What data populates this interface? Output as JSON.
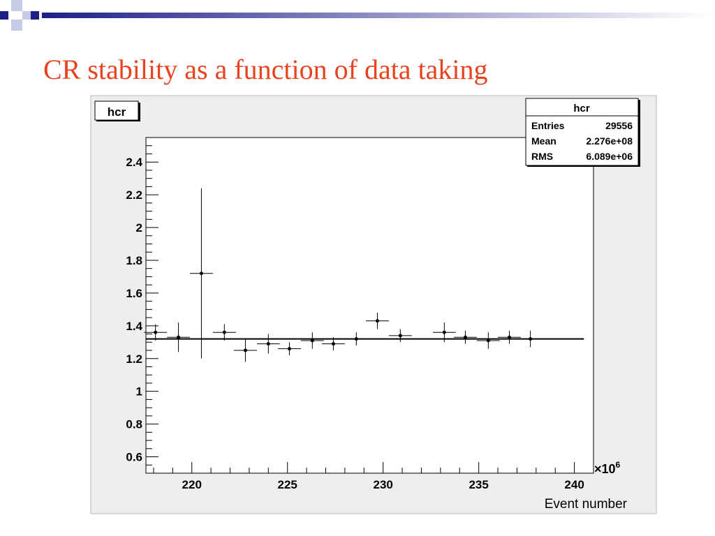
{
  "slide": {
    "title": "CR stability as a function of data taking"
  },
  "chart_data": {
    "type": "scatter",
    "title": "hcr",
    "xlabel": "Event number",
    "ylabel": "",
    "x_multiplier_label": "×10",
    "x_multiplier_exponent": "6",
    "xlim": [
      217.6,
      241
    ],
    "ylim": [
      0.5,
      2.55
    ],
    "x_ticks": [
      220,
      225,
      230,
      235,
      240
    ],
    "y_ticks": [
      0.6,
      0.8,
      1,
      1.2,
      1.4,
      1.6,
      1.8,
      2,
      2.2,
      2.4
    ],
    "y_tick_labels": [
      "0.6",
      "0.8",
      "1",
      "1.2",
      "1.4",
      "1.6",
      "1.8",
      "2",
      "2.2",
      "2.4"
    ],
    "x_tick_labels": [
      "220",
      "225",
      "230",
      "235",
      "240"
    ],
    "grid": false,
    "stats_box": {
      "title": "hcr",
      "rows": [
        {
          "label": "Entries",
          "value": "29556"
        },
        {
          "label": "Mean",
          "value": "2.276e+08"
        },
        {
          "label": "RMS",
          "value": "6.089e+06"
        }
      ]
    },
    "fit_line": {
      "y": 1.32,
      "x_start": 217.6,
      "x_end": 240.5
    },
    "points": [
      {
        "x": 218.1,
        "y": 1.36,
        "xerr": 0.6,
        "yerr": 0.05
      },
      {
        "x": 219.3,
        "y": 1.33,
        "xerr": 0.6,
        "yerr": 0.09
      },
      {
        "x": 220.5,
        "y": 1.72,
        "xerr": 0.6,
        "yerr": 0.52
      },
      {
        "x": 221.7,
        "y": 1.36,
        "xerr": 0.6,
        "yerr": 0.05
      },
      {
        "x": 222.8,
        "y": 1.25,
        "xerr": 0.6,
        "yerr": 0.07
      },
      {
        "x": 224.0,
        "y": 1.29,
        "xerr": 0.6,
        "yerr": 0.06
      },
      {
        "x": 225.1,
        "y": 1.26,
        "xerr": 0.6,
        "yerr": 0.04
      },
      {
        "x": 226.3,
        "y": 1.31,
        "xerr": 0.6,
        "yerr": 0.05
      },
      {
        "x": 227.4,
        "y": 1.29,
        "xerr": 0.6,
        "yerr": 0.04
      },
      {
        "x": 228.6,
        "y": 1.32,
        "xerr": 0.6,
        "yerr": 0.04
      },
      {
        "x": 229.7,
        "y": 1.43,
        "xerr": 0.6,
        "yerr": 0.05
      },
      {
        "x": 230.9,
        "y": 1.34,
        "xerr": 0.6,
        "yerr": 0.04
      },
      {
        "x": 233.2,
        "y": 1.36,
        "xerr": 0.6,
        "yerr": 0.06
      },
      {
        "x": 234.3,
        "y": 1.33,
        "xerr": 0.6,
        "yerr": 0.04
      },
      {
        "x": 235.5,
        "y": 1.31,
        "xerr": 0.6,
        "yerr": 0.05
      },
      {
        "x": 236.6,
        "y": 1.33,
        "xerr": 0.6,
        "yerr": 0.04
      },
      {
        "x": 237.7,
        "y": 1.32,
        "xerr": 0.6,
        "yerr": 0.05
      }
    ]
  }
}
